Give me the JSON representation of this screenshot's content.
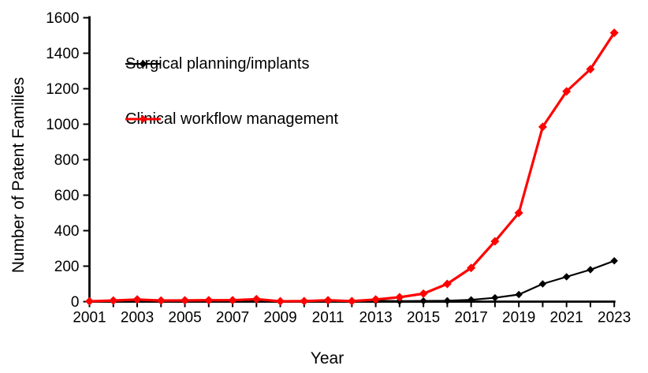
{
  "chart_data": {
    "type": "line",
    "title": "",
    "xlabel": "Year",
    "ylabel": "Number of Patent Families",
    "x": [
      2001,
      2002,
      2003,
      2004,
      2005,
      2006,
      2007,
      2008,
      2009,
      2010,
      2011,
      2012,
      2013,
      2014,
      2015,
      2016,
      2017,
      2018,
      2019,
      2020,
      2021,
      2022,
      2023
    ],
    "series": [
      {
        "name": "Surgical planning/implants",
        "color": "#000000",
        "marker": "diamond",
        "values": [
          1,
          3,
          10,
          4,
          5,
          6,
          5,
          10,
          1,
          2,
          5,
          2,
          5,
          3,
          4,
          5,
          10,
          22,
          40,
          100,
          140,
          180,
          230
        ]
      },
      {
        "name": "Clinical workflow management",
        "color": "#fe0000",
        "marker": "diamond",
        "values": [
          2,
          6,
          12,
          6,
          7,
          8,
          8,
          14,
          2,
          3,
          8,
          3,
          12,
          25,
          45,
          100,
          190,
          340,
          500,
          985,
          1185,
          1310,
          1515
        ]
      }
    ],
    "ylim": [
      0,
      1600
    ],
    "ytick_step": 200,
    "xtick_label_every": 2,
    "grid": false,
    "legend_position": "inside-top-left",
    "background": "#ffffff"
  }
}
